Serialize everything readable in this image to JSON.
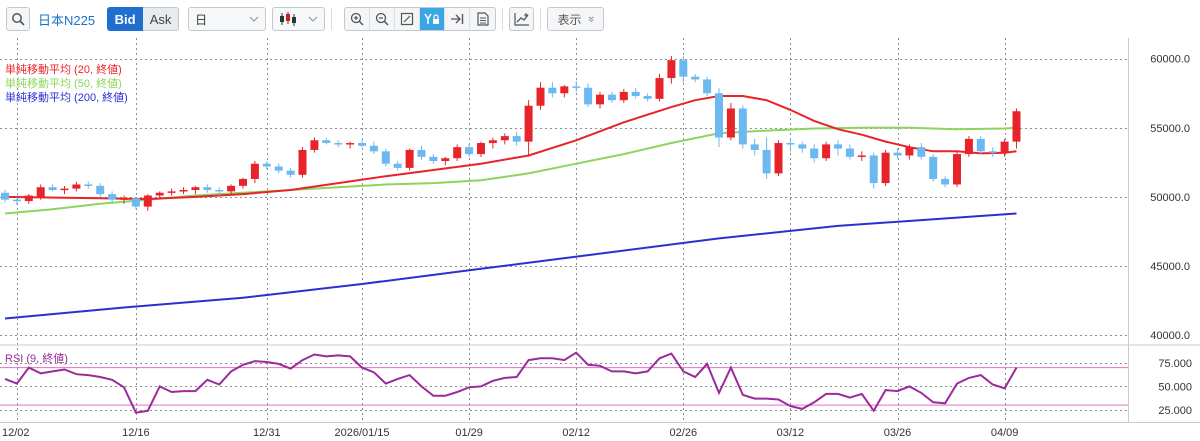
{
  "toolbar": {
    "symbol": "日本N225",
    "bid_label": "Bid",
    "ask_label": "Ask",
    "timeframe": "日",
    "display_label": "表示",
    "display_chevron": "»"
  },
  "colors": {
    "up": "#e8242b",
    "down": "#6cb8f0",
    "sma20": "#e8242b",
    "sma50": "#8fd45e",
    "sma200": "#2d2fd4",
    "rsi": "#9b2a9b",
    "rsi_band": "#e070c8"
  },
  "chart_data": [
    {
      "type": "candlestick",
      "ylim": [
        39500,
        61500
      ],
      "y_ticks": [
        "60000.0",
        "55000.0",
        "50000.0",
        "45000.0",
        "40000.0"
      ],
      "x_ticks": [
        {
          "index": 1,
          "label": "12/02"
        },
        {
          "index": 11,
          "label": "12/16"
        },
        {
          "index": 22,
          "label": "12/31"
        },
        {
          "index": 30,
          "label": "2026/01/15"
        },
        {
          "index": 39,
          "label": "01/29"
        },
        {
          "index": 48,
          "label": "02/12"
        },
        {
          "index": 57,
          "label": "02/26"
        },
        {
          "index": 66,
          "label": "03/12"
        },
        {
          "index": 75,
          "label": "03/26"
        },
        {
          "index": 84,
          "label": "04/09"
        }
      ],
      "legend": [
        {
          "label": "単純移動平均 (20, 終値)",
          "color_key": "sma20"
        },
        {
          "label": "単純移動平均 (50, 終値)",
          "color_key": "sma50"
        },
        {
          "label": "単純移動平均 (200, 終値)",
          "color_key": "sma200"
        }
      ],
      "candles": [
        [
          50300,
          50500,
          49600,
          49800
        ],
        [
          49800,
          50000,
          49400,
          49700
        ],
        [
          49700,
          50200,
          49500,
          50100
        ],
        [
          50000,
          50900,
          49800,
          50700
        ],
        [
          50700,
          50900,
          50400,
          50500
        ],
        [
          50500,
          50800,
          50200,
          50600
        ],
        [
          50600,
          51100,
          50400,
          50900
        ],
        [
          50900,
          51100,
          50600,
          50800
        ],
        [
          50800,
          51000,
          50000,
          50200
        ],
        [
          50200,
          50400,
          49600,
          49800
        ],
        [
          49800,
          50100,
          49500,
          49900
        ],
        [
          49900,
          50000,
          49100,
          49300
        ],
        [
          49300,
          50200,
          49000,
          50100
        ],
        [
          50100,
          50400,
          49900,
          50300
        ],
        [
          50300,
          50600,
          50100,
          50400
        ],
        [
          50400,
          50700,
          50200,
          50500
        ],
        [
          50500,
          50800,
          50200,
          50700
        ],
        [
          50700,
          50900,
          50300,
          50500
        ],
        [
          50500,
          50700,
          50100,
          50400
        ],
        [
          50400,
          50900,
          50200,
          50800
        ],
        [
          50800,
          51400,
          50600,
          51300
        ],
        [
          51300,
          52600,
          51000,
          52400
        ],
        [
          52400,
          52600,
          52000,
          52200
        ],
        [
          52200,
          52400,
          51700,
          51900
        ],
        [
          51900,
          52100,
          51400,
          51600
        ],
        [
          51600,
          53600,
          51400,
          53400
        ],
        [
          53400,
          54300,
          53200,
          54100
        ],
        [
          54100,
          54300,
          53800,
          53900
        ],
        [
          53900,
          54100,
          53600,
          53800
        ],
        [
          53800,
          54000,
          53500,
          53900
        ],
        [
          53900,
          54100,
          53600,
          53700
        ],
        [
          53700,
          54000,
          53100,
          53300
        ],
        [
          53300,
          53500,
          52200,
          52400
        ],
        [
          52400,
          52600,
          51900,
          52100
        ],
        [
          52100,
          53500,
          51900,
          53400
        ],
        [
          53400,
          53700,
          52700,
          52900
        ],
        [
          52900,
          53100,
          52400,
          52600
        ],
        [
          52600,
          52900,
          52300,
          52800
        ],
        [
          52800,
          53800,
          52600,
          53600
        ],
        [
          53600,
          53800,
          52900,
          53100
        ],
        [
          53100,
          54000,
          52900,
          53900
        ],
        [
          53900,
          54300,
          53500,
          54100
        ],
        [
          54100,
          54600,
          53800,
          54400
        ],
        [
          54400,
          54700,
          53700,
          54000
        ],
        [
          54000,
          57000,
          52900,
          56600
        ],
        [
          56600,
          58300,
          56300,
          57900
        ],
        [
          57900,
          58300,
          57200,
          57500
        ],
        [
          57500,
          58100,
          57200,
          58000
        ],
        [
          58000,
          58400,
          57600,
          57900
        ],
        [
          57900,
          58200,
          56500,
          56700
        ],
        [
          56700,
          57600,
          56400,
          57400
        ],
        [
          57400,
          57600,
          56800,
          57000
        ],
        [
          57000,
          57800,
          56800,
          57600
        ],
        [
          57600,
          57900,
          57100,
          57300
        ],
        [
          57300,
          57500,
          56900,
          57100
        ],
        [
          57100,
          58900,
          56900,
          58600
        ],
        [
          58600,
          60200,
          58200,
          59900
        ],
        [
          59900,
          60200,
          58300,
          58700
        ],
        [
          58700,
          58900,
          58300,
          58500
        ],
        [
          58500,
          58700,
          57300,
          57500
        ],
        [
          57500,
          57900,
          53600,
          54300
        ],
        [
          54300,
          56800,
          54100,
          56400
        ],
        [
          56400,
          56600,
          53500,
          53800
        ],
        [
          53800,
          54200,
          53000,
          53400
        ],
        [
          53400,
          54300,
          51300,
          51700
        ],
        [
          51700,
          54100,
          51500,
          53900
        ],
        [
          53900,
          54200,
          53300,
          53800
        ],
        [
          53800,
          54000,
          53200,
          53500
        ],
        [
          53500,
          53800,
          52500,
          52800
        ],
        [
          52800,
          54000,
          52600,
          53800
        ],
        [
          53800,
          54100,
          53000,
          53500
        ],
        [
          53500,
          53800,
          52700,
          52900
        ],
        [
          52900,
          53300,
          52600,
          53000
        ],
        [
          53000,
          53200,
          50600,
          51000
        ],
        [
          51000,
          53400,
          50800,
          53200
        ],
        [
          53200,
          53500,
          52800,
          53000
        ],
        [
          53000,
          53800,
          52700,
          53600
        ],
        [
          53600,
          53900,
          52700,
          52900
        ],
        [
          52900,
          53100,
          51100,
          51300
        ],
        [
          51300,
          51500,
          50700,
          50900
        ],
        [
          50900,
          53300,
          50700,
          53100
        ],
        [
          53100,
          54400,
          52900,
          54200
        ],
        [
          54200,
          54400,
          53100,
          53300
        ],
        [
          53300,
          53600,
          52900,
          53200
        ],
        [
          53200,
          54200,
          52900,
          54000
        ],
        [
          54000,
          56400,
          53500,
          56200
        ]
      ],
      "sma20": [
        [
          0,
          50000
        ],
        [
          8,
          49900
        ],
        [
          12,
          49850
        ],
        [
          16,
          50000
        ],
        [
          20,
          50200
        ],
        [
          24,
          50500
        ],
        [
          28,
          51000
        ],
        [
          32,
          51500
        ],
        [
          36,
          51950
        ],
        [
          40,
          52400
        ],
        [
          44,
          53000
        ],
        [
          48,
          54100
        ],
        [
          52,
          55400
        ],
        [
          56,
          56500
        ],
        [
          58,
          57000
        ],
        [
          60,
          57300
        ],
        [
          62,
          57300
        ],
        [
          64,
          57000
        ],
        [
          66,
          56300
        ],
        [
          68,
          55500
        ],
        [
          70,
          54900
        ],
        [
          72,
          54500
        ],
        [
          74,
          54000
        ],
        [
          76,
          53600
        ],
        [
          78,
          53300
        ],
        [
          80,
          53300
        ],
        [
          82,
          53150
        ],
        [
          84,
          53200
        ],
        [
          85,
          53300
        ]
      ],
      "sma50": [
        [
          0,
          48800
        ],
        [
          4,
          49100
        ],
        [
          8,
          49500
        ],
        [
          12,
          49800
        ],
        [
          16,
          50100
        ],
        [
          20,
          50300
        ],
        [
          24,
          50500
        ],
        [
          28,
          50700
        ],
        [
          32,
          50900
        ],
        [
          36,
          51000
        ],
        [
          40,
          51200
        ],
        [
          44,
          51700
        ],
        [
          48,
          52400
        ],
        [
          52,
          53100
        ],
        [
          56,
          53900
        ],
        [
          60,
          54600
        ],
        [
          64,
          54800
        ],
        [
          68,
          54950
        ],
        [
          72,
          55000
        ],
        [
          76,
          55000
        ],
        [
          80,
          54900
        ],
        [
          84,
          54950
        ],
        [
          85,
          55000
        ]
      ],
      "sma200": [
        [
          0,
          41200
        ],
        [
          10,
          42000
        ],
        [
          20,
          42700
        ],
        [
          30,
          43700
        ],
        [
          40,
          44800
        ],
        [
          50,
          45900
        ],
        [
          60,
          47000
        ],
        [
          70,
          47900
        ],
        [
          80,
          48500
        ],
        [
          85,
          48800
        ]
      ]
    },
    {
      "type": "line",
      "title": "RSI (9, 終値)",
      "ylim": [
        12,
        92
      ],
      "y_ticks": [
        "75.000",
        "50.000",
        "25.000"
      ],
      "bands": [
        70,
        30
      ],
      "values": [
        58,
        53,
        70,
        64,
        66,
        68,
        63,
        62,
        60,
        57,
        49,
        22,
        24,
        50,
        44,
        45,
        45,
        57,
        52,
        66,
        73,
        77,
        76,
        74,
        69,
        78,
        84,
        82,
        83,
        82,
        70,
        65,
        53,
        58,
        62,
        50,
        40,
        40,
        44,
        49,
        50,
        56,
        59,
        60,
        78,
        80,
        80,
        78,
        86,
        73,
        72,
        66,
        66,
        64,
        66,
        80,
        85,
        66,
        60,
        74,
        43,
        70,
        41,
        37,
        37,
        36,
        29,
        26,
        33,
        42,
        42,
        38,
        42,
        24,
        46,
        45,
        50,
        43,
        33,
        32,
        53,
        59,
        62,
        52,
        48,
        70
      ]
    }
  ]
}
